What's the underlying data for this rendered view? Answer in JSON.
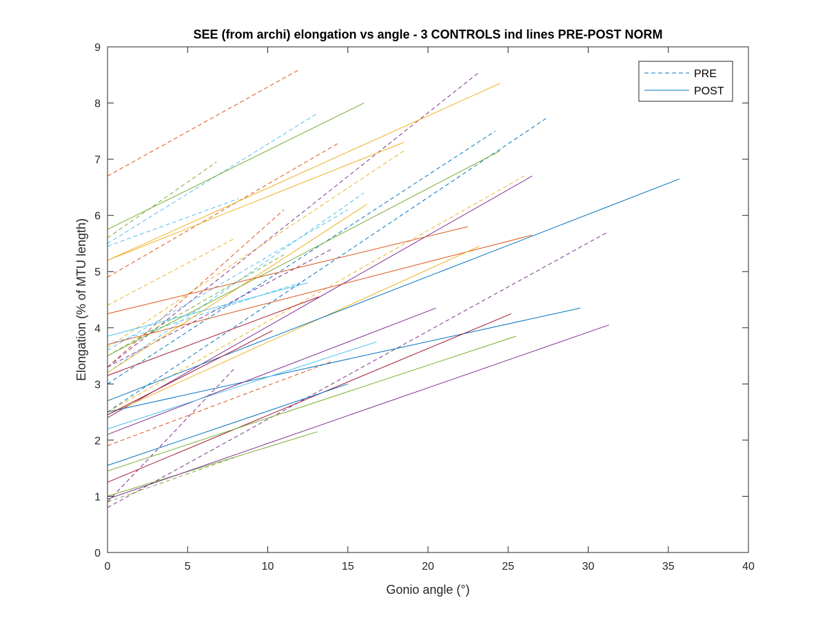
{
  "chart_data": {
    "type": "line",
    "title": "SEE (from archi) elongation vs angle - 3 CONTROLS ind lines PRE-POST NORM",
    "xlabel": "Gonio angle (°)",
    "ylabel": "Elongation (% of MTU length)",
    "xlim": [
      0,
      40
    ],
    "ylim": [
      0,
      9
    ],
    "xticks": [
      0,
      5,
      10,
      15,
      20,
      25,
      30,
      35,
      40
    ],
    "yticks": [
      0,
      1,
      2,
      3,
      4,
      5,
      6,
      7,
      8,
      9
    ],
    "grid": false,
    "legend": {
      "placement": "top-right",
      "entries": [
        {
          "label": "PRE",
          "style": "dashed",
          "color": "#0072BD"
        },
        {
          "label": "POST",
          "style": "solid",
          "color": "#0072BD"
        }
      ]
    },
    "series": [
      {
        "style": "dashed",
        "color": "#D95319",
        "x": [
          0,
          12
        ],
        "y": [
          6.7,
          8.6
        ]
      },
      {
        "style": "dashed",
        "color": "#4DBEEE",
        "x": [
          0,
          13
        ],
        "y": [
          5.5,
          7.8
        ]
      },
      {
        "style": "dashed",
        "color": "#77AC30",
        "x": [
          0,
          6.8
        ],
        "y": [
          5.6,
          6.95
        ]
      },
      {
        "style": "dashed",
        "color": "#4DBEEE",
        "x": [
          0,
          8.2
        ],
        "y": [
          5.45,
          6.3
        ]
      },
      {
        "style": "dashed",
        "color": "#7E2F8E",
        "x": [
          0,
          23.2
        ],
        "y": [
          3.3,
          8.55
        ]
      },
      {
        "style": "dashed",
        "color": "#0072BD",
        "x": [
          0,
          24.2
        ],
        "y": [
          3.0,
          7.5
        ]
      },
      {
        "style": "dashed",
        "color": "#0072BD",
        "x": [
          0,
          27.5
        ],
        "y": [
          2.5,
          7.75
        ]
      },
      {
        "style": "dashed",
        "color": "#EDB120",
        "x": [
          0,
          18.5
        ],
        "y": [
          3.65,
          7.15
        ]
      },
      {
        "style": "dashed",
        "color": "#EDB120",
        "x": [
          0,
          26
        ],
        "y": [
          2.5,
          6.7
        ]
      },
      {
        "style": "dashed",
        "color": "#D95319",
        "x": [
          0,
          14.5
        ],
        "y": [
          4.9,
          7.3
        ]
      },
      {
        "style": "dashed",
        "color": "#D95319",
        "x": [
          0,
          11
        ],
        "y": [
          3.3,
          6.1
        ]
      },
      {
        "style": "dashed",
        "color": "#4DBEEE",
        "x": [
          0,
          16
        ],
        "y": [
          3.2,
          6.4
        ]
      },
      {
        "style": "dashed",
        "color": "#4DBEEE",
        "x": [
          0,
          15
        ],
        "y": [
          3.6,
          6.1
        ]
      },
      {
        "style": "dashed",
        "color": "#EDB120",
        "x": [
          0,
          8
        ],
        "y": [
          4.4,
          5.6
        ]
      },
      {
        "style": "dashed",
        "color": "#77AC30",
        "x": [
          0,
          11
        ],
        "y": [
          3.5,
          5.3
        ]
      },
      {
        "style": "dashed",
        "color": "#7E2F8E",
        "x": [
          0,
          14
        ],
        "y": [
          3.3,
          5.4
        ]
      },
      {
        "style": "dashed",
        "color": "#4DBEEE",
        "x": [
          0,
          12
        ],
        "y": [
          3.7,
          4.8
        ]
      },
      {
        "style": "dashed",
        "color": "#7E2F8E",
        "x": [
          0,
          31.2
        ],
        "y": [
          0.8,
          5.7
        ]
      },
      {
        "style": "dashed",
        "color": "#7E2F8E",
        "x": [
          0,
          8
        ],
        "y": [
          0.9,
          3.3
        ]
      },
      {
        "style": "dashed",
        "color": "#D95319",
        "x": [
          0,
          14
        ],
        "y": [
          1.9,
          3.4
        ]
      },
      {
        "style": "dashed",
        "color": "#77AC30",
        "x": [
          0,
          8.5
        ],
        "y": [
          0.9,
          1.75
        ]
      },
      {
        "style": "solid",
        "color": "#77AC30",
        "x": [
          0,
          16
        ],
        "y": [
          5.75,
          8.0
        ]
      },
      {
        "style": "solid",
        "color": "#EDB120",
        "x": [
          0,
          24.5
        ],
        "y": [
          5.2,
          8.35
        ]
      },
      {
        "style": "solid",
        "color": "#EDB120",
        "x": [
          0,
          18.5
        ],
        "y": [
          5.2,
          7.3
        ]
      },
      {
        "style": "solid",
        "color": "#EDB120",
        "x": [
          0,
          16.2
        ],
        "y": [
          3.2,
          6.2
        ]
      },
      {
        "style": "solid",
        "color": "#77AC30",
        "x": [
          0,
          24.5
        ],
        "y": [
          3.5,
          7.15
        ]
      },
      {
        "style": "solid",
        "color": "#7E2F8E",
        "x": [
          0,
          26.5
        ],
        "y": [
          2.4,
          6.7
        ]
      },
      {
        "style": "solid",
        "color": "#D95319",
        "x": [
          0,
          22.5
        ],
        "y": [
          4.25,
          5.8
        ]
      },
      {
        "style": "solid",
        "color": "#D95319",
        "x": [
          0,
          26.5
        ],
        "y": [
          3.7,
          5.65
        ]
      },
      {
        "style": "solid",
        "color": "#EDB120",
        "x": [
          0,
          23.2
        ],
        "y": [
          2.45,
          5.45
        ]
      },
      {
        "style": "solid",
        "color": "#4DBEEE",
        "x": [
          0,
          12.5
        ],
        "y": [
          3.85,
          4.8
        ]
      },
      {
        "style": "solid",
        "color": "#A2142F",
        "x": [
          0,
          13.2
        ],
        "y": [
          3.15,
          4.55
        ]
      },
      {
        "style": "solid",
        "color": "#0072BD",
        "x": [
          0,
          35.7
        ],
        "y": [
          2.7,
          6.65
        ]
      },
      {
        "style": "solid",
        "color": "#0072BD",
        "x": [
          0,
          29.5
        ],
        "y": [
          2.5,
          4.35
        ]
      },
      {
        "style": "solid",
        "color": "#7E2F8E",
        "x": [
          0,
          20.5
        ],
        "y": [
          2.1,
          4.35
        ]
      },
      {
        "style": "solid",
        "color": "#A2142F",
        "x": [
          0,
          25.2
        ],
        "y": [
          1.25,
          4.25
        ]
      },
      {
        "style": "solid",
        "color": "#77AC30",
        "x": [
          0,
          25.5
        ],
        "y": [
          1.45,
          3.85
        ]
      },
      {
        "style": "solid",
        "color": "#4DBEEE",
        "x": [
          0,
          16.8
        ],
        "y": [
          2.2,
          3.75
        ]
      },
      {
        "style": "solid",
        "color": "#A2142F",
        "x": [
          0,
          10.3
        ],
        "y": [
          2.45,
          3.95
        ]
      },
      {
        "style": "solid",
        "color": "#0072BD",
        "x": [
          0,
          15
        ],
        "y": [
          1.55,
          3.0
        ]
      },
      {
        "style": "solid",
        "color": "#77AC30",
        "x": [
          0,
          13.1
        ],
        "y": [
          1.0,
          2.15
        ]
      },
      {
        "style": "solid",
        "color": "#7E2F8E",
        "x": [
          0,
          31.3
        ],
        "y": [
          0.95,
          4.05
        ]
      }
    ]
  }
}
